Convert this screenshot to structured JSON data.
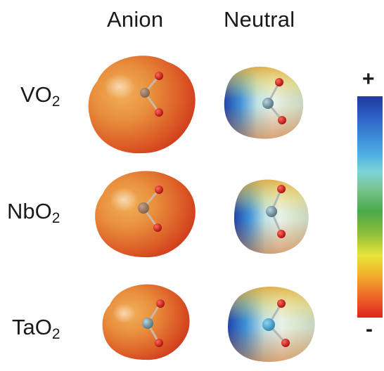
{
  "headers": {
    "anion": "Anion",
    "neutral": "Neutral"
  },
  "rows": [
    {
      "formula": "VO",
      "subscript": "2",
      "metal": "V"
    },
    {
      "formula": "NbO",
      "subscript": "2",
      "metal": "Nb"
    },
    {
      "formula": "TaO",
      "subscript": "2",
      "metal": "Ta"
    }
  ],
  "scale": {
    "top": "+",
    "bottom": "-"
  },
  "colors": {
    "anion_surface": "#d8532a",
    "neutral_positive": "#2f5fc4",
    "neutral_mid": "#d9ece8",
    "oxygen": "#c81818",
    "metal_atom": "#6f8e99"
  }
}
